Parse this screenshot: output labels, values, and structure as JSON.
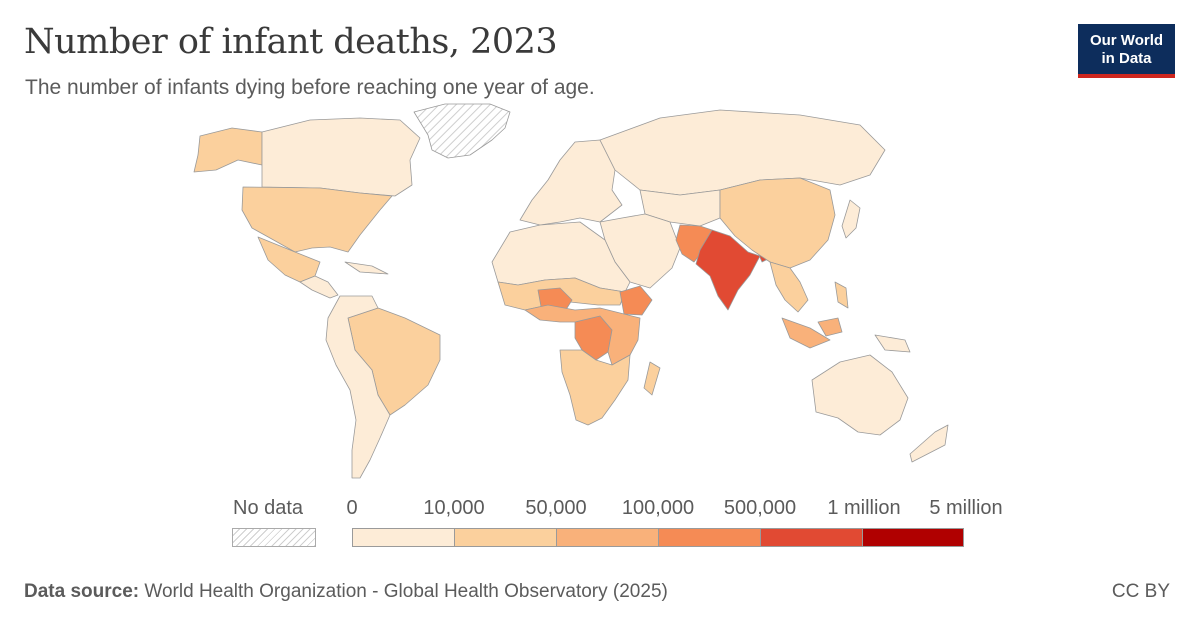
{
  "header": {
    "title": "Number of infant deaths, 2023",
    "subtitle": "The number of infants dying before reaching one year of age."
  },
  "logo": {
    "line1": "Our World",
    "line2": "in Data"
  },
  "colors": {
    "no_data_hatch": "#cfcfcf",
    "border": "#9a9a9a",
    "bins": [
      "#fdecd7",
      "#fbd09d",
      "#f9b17a",
      "#f58b55",
      "#e14a33",
      "#b00000"
    ],
    "logo_bg": "#0d2d5c",
    "logo_accent": "#ce261e"
  },
  "legend": {
    "no_data_label": "No data",
    "tick_labels": [
      "0",
      "10,000",
      "50,000",
      "100,000",
      "500,000",
      "1 million",
      "5 million"
    ]
  },
  "map": {
    "regions": [
      {
        "name": "Greenland",
        "bin": -1
      },
      {
        "name": "United States",
        "bin": 1
      },
      {
        "name": "Canada",
        "bin": 0
      },
      {
        "name": "Alaska",
        "bin": 1
      },
      {
        "name": "Mexico",
        "bin": 1
      },
      {
        "name": "Brazil",
        "bin": 1
      },
      {
        "name": "South America",
        "bin": 0
      },
      {
        "name": "Russia",
        "bin": 0
      },
      {
        "name": "China",
        "bin": 1
      },
      {
        "name": "India",
        "bin": 4
      },
      {
        "name": "Pakistan",
        "bin": 3
      },
      {
        "name": "Bangladesh",
        "bin": 4
      },
      {
        "name": "Nigeria",
        "bin": 3
      },
      {
        "name": "DR Congo",
        "bin": 3
      },
      {
        "name": "Ethiopia",
        "bin": 3
      },
      {
        "name": "Indonesia",
        "bin": 2
      },
      {
        "name": "Australia",
        "bin": 0
      }
    ]
  },
  "footer": {
    "source_label": "Data source:",
    "source_text": "World Health Organization - Global Health Observatory (2025)",
    "license": "CC BY"
  }
}
